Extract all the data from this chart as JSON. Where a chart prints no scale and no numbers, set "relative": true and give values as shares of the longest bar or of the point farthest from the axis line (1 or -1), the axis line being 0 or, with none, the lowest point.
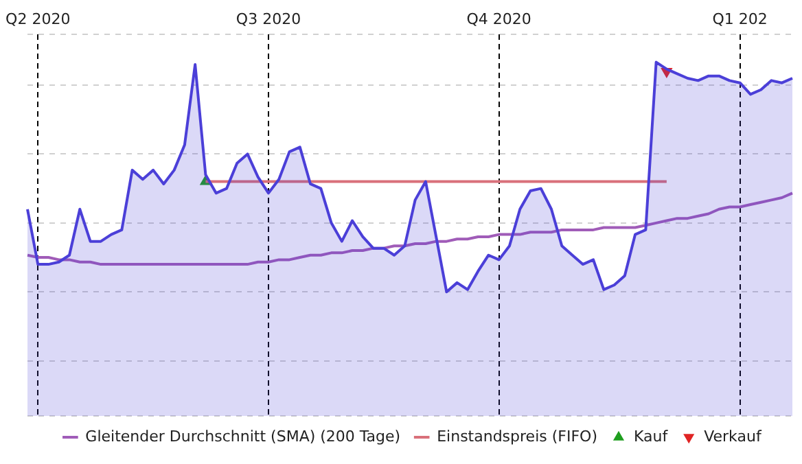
{
  "chart_data": {
    "type": "area",
    "relative": true,
    "grid": true,
    "legend": "bottom",
    "categories": [
      null,
      "Q2 2020",
      null,
      null,
      null,
      null,
      null,
      null,
      null,
      null,
      null,
      null,
      null,
      null,
      null,
      null,
      null,
      null,
      null,
      null,
      null,
      null,
      null,
      "Q3 2020",
      null,
      null,
      null,
      null,
      null,
      null,
      null,
      null,
      null,
      null,
      null,
      null,
      null,
      null,
      null,
      null,
      null,
      null,
      null,
      null,
      null,
      "Q4 2020",
      null,
      null,
      null,
      null,
      null,
      null,
      null,
      null,
      null,
      null,
      null,
      null,
      null,
      null,
      null,
      null,
      null,
      null,
      null,
      null,
      null,
      null,
      "Q1 202",
      null,
      null,
      null,
      null,
      null
    ],
    "series": [
      {
        "color": "#4b3fd8",
        "values": [
          0.36,
          0.12,
          0.12,
          0.13,
          0.16,
          0.36,
          0.22,
          0.22,
          0.25,
          0.27,
          0.53,
          0.49,
          0.53,
          0.47,
          0.53,
          0.64,
          0.99,
          0.51,
          0.43,
          0.45,
          0.56,
          0.6,
          0.5,
          0.43,
          0.49,
          0.61,
          0.63,
          0.47,
          0.45,
          0.3,
          0.22,
          0.31,
          0.24,
          0.19,
          0.19,
          0.16,
          0.2,
          0.4,
          0.48,
          0.24,
          0,
          0.04,
          0.01,
          0.09,
          0.16,
          0.14,
          0.2,
          0.36,
          0.44,
          0.45,
          0.36,
          0.2,
          0.16,
          0.12,
          0.14,
          0.01,
          0.03,
          0.07,
          0.25,
          0.27,
          1,
          0.97,
          0.95,
          0.93,
          0.92,
          0.94,
          0.94,
          0.92,
          0.91,
          0.86,
          0.88,
          0.92,
          0.91,
          0.93
        ]
      },
      {
        "type": "line",
        "name": "Gleitender Durchschnitt (SMA) (200 Tage)",
        "color": "#a05cb8",
        "values": [
          0.16,
          0.15,
          0.15,
          0.14,
          0.14,
          0.13,
          0.13,
          0.12,
          0.12,
          0.12,
          0.12,
          0.12,
          0.12,
          0.12,
          0.12,
          0.12,
          0.12,
          0.12,
          0.12,
          0.12,
          0.12,
          0.12,
          0.13,
          0.13,
          0.14,
          0.14,
          0.15,
          0.16,
          0.16,
          0.17,
          0.17,
          0.18,
          0.18,
          0.19,
          0.19,
          0.2,
          0.2,
          0.21,
          0.21,
          0.22,
          0.22,
          0.23,
          0.23,
          0.24,
          0.24,
          0.25,
          0.25,
          0.25,
          0.26,
          0.26,
          0.26,
          0.27,
          0.27,
          0.27,
          0.27,
          0.28,
          0.28,
          0.28,
          0.28,
          0.29,
          0.3,
          0.31,
          0.32,
          0.32,
          0.33,
          0.34,
          0.36,
          0.37,
          0.37,
          0.38,
          0.39,
          0.4,
          0.41,
          0.43
        ]
      },
      {
        "type": "line",
        "name": "Einstandspreis (FIFO)",
        "color": "#d9707a",
        "values": [
          null,
          null,
          null,
          null,
          null,
          null,
          null,
          null,
          null,
          null,
          null,
          null,
          null,
          null,
          null,
          null,
          null,
          0.48,
          null,
          null,
          null,
          null,
          null,
          null,
          null,
          null,
          null,
          null,
          null,
          null,
          null,
          null,
          null,
          null,
          null,
          null,
          null,
          null,
          null,
          null,
          null,
          null,
          null,
          null,
          null,
          null,
          null,
          null,
          null,
          null,
          null,
          null,
          null,
          null,
          null,
          null,
          null,
          null,
          null,
          null,
          null,
          0.48,
          null,
          null,
          null,
          null,
          null,
          null,
          null,
          null,
          null,
          null,
          null,
          null
        ]
      },
      {
        "type": "scatter",
        "name": "Kauf",
        "color": "#1e9e1e",
        "marker": "triangle",
        "values": [
          null,
          null,
          null,
          null,
          null,
          null,
          null,
          null,
          null,
          null,
          null,
          null,
          null,
          null,
          null,
          null,
          null,
          0.48,
          null,
          null,
          null,
          null,
          null,
          null,
          null,
          null,
          null,
          null,
          null,
          null,
          null,
          null,
          null,
          null,
          null,
          null,
          null,
          null,
          null,
          null,
          null,
          null,
          null,
          null,
          null,
          null,
          null,
          null,
          null,
          null,
          null,
          null,
          null,
          null,
          null,
          null,
          null,
          null,
          null,
          null,
          null,
          null,
          null,
          null,
          null,
          null,
          null,
          null,
          null,
          null,
          null,
          null,
          null,
          null
        ]
      },
      {
        "type": "scatter",
        "name": "Verkauf",
        "color": "#e02424",
        "marker": "triangle-down",
        "values": [
          null,
          null,
          null,
          null,
          null,
          null,
          null,
          null,
          null,
          null,
          null,
          null,
          null,
          null,
          null,
          null,
          null,
          null,
          null,
          null,
          null,
          null,
          null,
          null,
          null,
          null,
          null,
          null,
          null,
          null,
          null,
          null,
          null,
          null,
          null,
          null,
          null,
          null,
          null,
          null,
          null,
          null,
          null,
          null,
          null,
          null,
          null,
          null,
          null,
          null,
          null,
          null,
          null,
          null,
          null,
          null,
          null,
          null,
          null,
          null,
          null,
          0.96,
          null,
          null,
          null,
          null,
          null,
          null,
          null,
          null,
          null,
          null,
          null,
          null
        ]
      }
    ]
  }
}
